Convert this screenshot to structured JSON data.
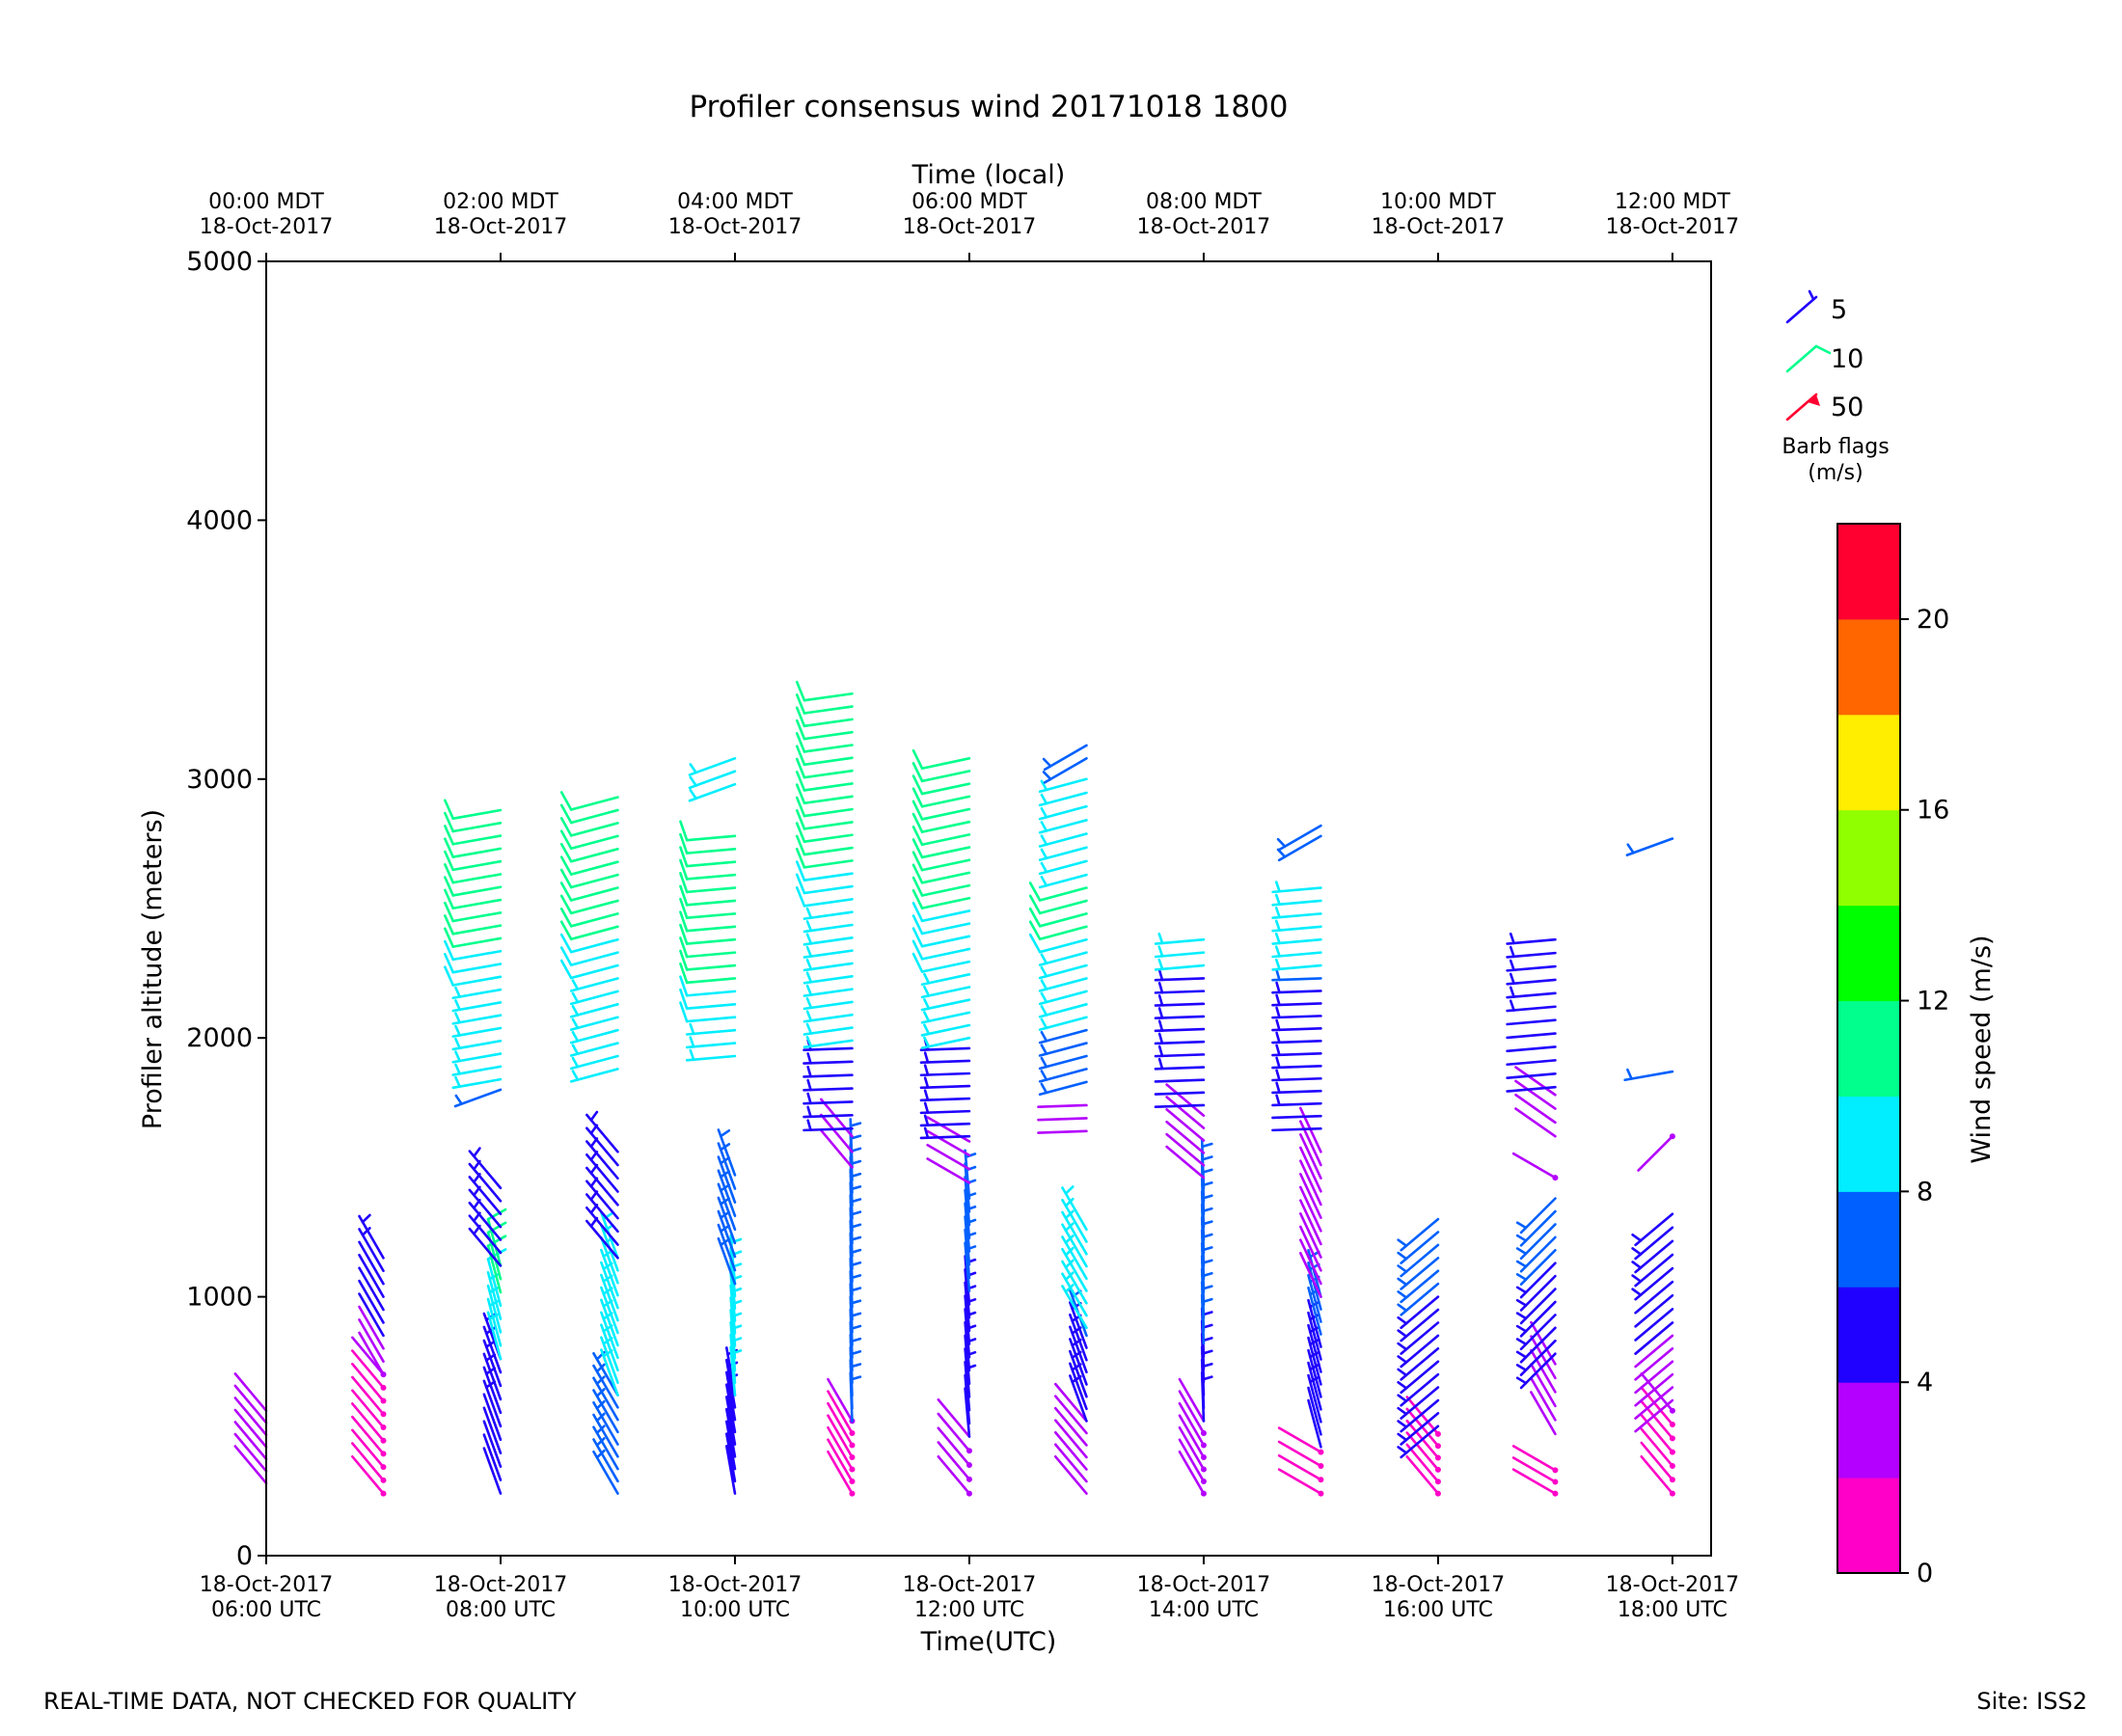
{
  "chart_data": {
    "type": "wind-barbs",
    "title": "Profiler consensus wind 20171018 1800",
    "xlabel": "Time(UTC)",
    "xlabel_top": "Time (local)",
    "ylabel": "Profiler altitude (meters)",
    "ylim": [
      0,
      5000
    ],
    "xlim_hours_utc": [
      6.0,
      18.33
    ],
    "yticks": [
      0,
      1000,
      2000,
      3000,
      4000,
      5000
    ],
    "xticks_bottom": [
      {
        "hour": 6,
        "line1": "18-Oct-2017",
        "line2": "06:00 UTC"
      },
      {
        "hour": 8,
        "line1": "18-Oct-2017",
        "line2": "08:00 UTC"
      },
      {
        "hour": 10,
        "line1": "18-Oct-2017",
        "line2": "10:00 UTC"
      },
      {
        "hour": 12,
        "line1": "18-Oct-2017",
        "line2": "12:00 UTC"
      },
      {
        "hour": 14,
        "line1": "18-Oct-2017",
        "line2": "14:00 UTC"
      },
      {
        "hour": 16,
        "line1": "18-Oct-2017",
        "line2": "16:00 UTC"
      },
      {
        "hour": 18,
        "line1": "18-Oct-2017",
        "line2": "18:00 UTC"
      }
    ],
    "xticks_top": [
      {
        "hour": 6,
        "line1": "00:00 MDT",
        "line2": "18-Oct-2017"
      },
      {
        "hour": 8,
        "line1": "02:00 MDT",
        "line2": "18-Oct-2017"
      },
      {
        "hour": 10,
        "line1": "04:00 MDT",
        "line2": "18-Oct-2017"
      },
      {
        "hour": 12,
        "line1": "06:00 MDT",
        "line2": "18-Oct-2017"
      },
      {
        "hour": 14,
        "line1": "08:00 MDT",
        "line2": "18-Oct-2017"
      },
      {
        "hour": 16,
        "line1": "10:00 MDT",
        "line2": "18-Oct-2017"
      },
      {
        "hour": 18,
        "line1": "12:00 MDT",
        "line2": "18-Oct-2017"
      }
    ],
    "colorbar": {
      "label": "Wind speed (m/s)",
      "min": 0,
      "max": 22,
      "step": 2,
      "ticks": [
        0,
        4,
        8,
        12,
        16,
        20
      ],
      "colors": [
        "#ff00c8",
        "#b400ff",
        "#2000ff",
        "#0060ff",
        "#00eeff",
        "#00ff8c",
        "#00ff00",
        "#90ff00",
        "#ffee00",
        "#ff6600",
        "#ff0030"
      ]
    },
    "barb_legend": {
      "title_line1": "Barb flags",
      "title_line2": "(m/s)",
      "items": [
        {
          "label": "5",
          "speed": 5,
          "color": "#2000ff"
        },
        {
          "label": "10",
          "speed": 10,
          "color": "#00ff8c"
        },
        {
          "label": "50",
          "speed": 50,
          "color": "#ff0030"
        }
      ]
    },
    "profiles": [
      {
        "time": 6.0,
        "segments": [
          {
            "h0": 280,
            "h1": 560,
            "dir": 320,
            "spd0": 2.5,
            "spd1": 3.0
          }
        ]
      },
      {
        "time": 7.0,
        "segments": [
          {
            "h0": 240,
            "h1": 700,
            "dir": 320,
            "spd0": 1.0,
            "spd1": 2.0
          },
          {
            "h0": 700,
            "h1": 1150,
            "dir": 330,
            "spd0": 3.5,
            "spd1": 5.0
          }
        ]
      },
      {
        "time": 8.0,
        "segments": [
          {
            "h0": 240,
            "h1": 760,
            "dir": 340,
            "spd0": 4.5,
            "spd1": 5.0
          },
          {
            "h0": 760,
            "h1": 1120,
            "dir": 345,
            "spd0": 9.0,
            "spd1": 10.5
          },
          {
            "h0": 1120,
            "h1": 1420,
            "dir": 320,
            "spd0": 5.0,
            "spd1": 5.0
          },
          {
            "h0": 1800,
            "h1": 1800,
            "dir": 250,
            "spd0": 6.0,
            "spd1": 6.0
          },
          {
            "h0": 1840,
            "h1": 2880,
            "dir": 260,
            "spd0": 9.0,
            "spd1": 11.0
          }
        ]
      },
      {
        "time": 9.0,
        "segments": [
          {
            "h0": 240,
            "h1": 620,
            "dir": 330,
            "spd0": 6.0,
            "spd1": 7.0
          },
          {
            "h0": 620,
            "h1": 1150,
            "dir": 340,
            "spd0": 8.5,
            "spd1": 9.5
          },
          {
            "h0": 1150,
            "h1": 1560,
            "dir": 320,
            "spd0": 5.0,
            "spd1": 5.0
          },
          {
            "h0": 1880,
            "h1": 2930,
            "dir": 255,
            "spd0": 9.0,
            "spd1": 11.0
          }
        ]
      },
      {
        "time": 10.0,
        "segments": [
          {
            "h0": 240,
            "h1": 620,
            "dir": 350,
            "spd0": 4.0,
            "spd1": 5.0
          },
          {
            "h0": 620,
            "h1": 1050,
            "dir": 355,
            "spd0": 8.0,
            "spd1": 9.0
          },
          {
            "h0": 1050,
            "h1": 1470,
            "dir": 340,
            "spd0": 6.0,
            "spd1": 6.0
          },
          {
            "h0": 1930,
            "h1": 2780,
            "dir": 265,
            "spd0": 9.5,
            "spd1": 11.0
          },
          {
            "h0": 2980,
            "h1": 3080,
            "dir": 250,
            "spd0": 9.0,
            "spd1": 9.0
          }
        ]
      },
      {
        "time": 11.0,
        "segments": [
          {
            "h0": 240,
            "h1": 520,
            "dir": 330,
            "spd0": 1.5,
            "spd1": 2.0
          },
          {
            "h0": 520,
            "h1": 1500,
            "dir": 358,
            "spd0": 6.0,
            "spd1": 7.0
          },
          {
            "h0": 1500,
            "h1": 1620,
            "dir": 320,
            "spd0": 3.0,
            "spd1": 3.0
          },
          {
            "h0": 1650,
            "h1": 1960,
            "dir": 268,
            "spd0": 5.0,
            "spd1": 5.5
          },
          {
            "h0": 1990,
            "h1": 3330,
            "dir": 262,
            "spd0": 9.0,
            "spd1": 11.0
          }
        ]
      },
      {
        "time": 12.0,
        "segments": [
          {
            "h0": 240,
            "h1": 460,
            "dir": 320,
            "spd0": 2.0,
            "spd1": 2.5
          },
          {
            "h0": 460,
            "h1": 1380,
            "dir": 355,
            "spd0": 4.5,
            "spd1": 7.0
          },
          {
            "h0": 1440,
            "h1": 1600,
            "dir": 300,
            "spd0": 3.5,
            "spd1": 3.5
          },
          {
            "h0": 1620,
            "h1": 1960,
            "dir": 268,
            "spd0": 5.0,
            "spd1": 5.5
          },
          {
            "h0": 2000,
            "h1": 3080,
            "dir": 258,
            "spd0": 9.5,
            "spd1": 10.5
          }
        ]
      },
      {
        "time": 13.0,
        "segments": [
          {
            "h0": 240,
            "h1": 520,
            "dir": 320,
            "spd0": 3.0,
            "spd1": 3.0
          },
          {
            "h0": 520,
            "h1": 850,
            "dir": 340,
            "spd0": 5.0,
            "spd1": 6.0
          },
          {
            "h0": 880,
            "h1": 1260,
            "dir": 330,
            "spd0": 8.0,
            "spd1": 9.0
          },
          {
            "h0": 1640,
            "h1": 1740,
            "dir": 268,
            "spd0": 3.0,
            "spd1": 3.0
          },
          {
            "h0": 1830,
            "h1": 2580,
            "dir": 255,
            "spd0": 6.5,
            "spd1": 11.0
          },
          {
            "h0": 2630,
            "h1": 3000,
            "dir": 255,
            "spd0": 9.0,
            "spd1": 9.0
          },
          {
            "h0": 3080,
            "h1": 3130,
            "dir": 240,
            "spd0": 6.0,
            "spd1": 6.0
          }
        ]
      },
      {
        "time": 14.0,
        "segments": [
          {
            "h0": 240,
            "h1": 520,
            "dir": 330,
            "spd0": 2.0,
            "spd1": 2.5
          },
          {
            "h0": 520,
            "h1": 1420,
            "dir": 358,
            "spd0": 5.5,
            "spd1": 7.0
          },
          {
            "h0": 1460,
            "h1": 1700,
            "dir": 310,
            "spd0": 3.0,
            "spd1": 3.0
          },
          {
            "h0": 1740,
            "h1": 2230,
            "dir": 268,
            "spd0": 4.5,
            "spd1": 5.5
          },
          {
            "h0": 2280,
            "h1": 2380,
            "dir": 265,
            "spd0": 8.5,
            "spd1": 8.5
          }
        ]
      },
      {
        "time": 15.0,
        "segments": [
          {
            "h0": 240,
            "h1": 400,
            "dir": 300,
            "spd0": 1.0,
            "spd1": 1.5
          },
          {
            "h0": 420,
            "h1": 1000,
            "dir": 345,
            "spd0": 4.5,
            "spd1": 6.5
          },
          {
            "h0": 1000,
            "h1": 1560,
            "dir": 335,
            "spd0": 2.5,
            "spd1": 3.0
          },
          {
            "h0": 1650,
            "h1": 2230,
            "dir": 268,
            "spd0": 4.5,
            "spd1": 6.0
          },
          {
            "h0": 2280,
            "h1": 2580,
            "dir": 265,
            "spd0": 8.5,
            "spd1": 8.5
          },
          {
            "h0": 2780,
            "h1": 2820,
            "dir": 240,
            "spd0": 6.0,
            "spd1": 6.0
          }
        ]
      },
      {
        "time": 16.0,
        "segments": [
          {
            "h0": 240,
            "h1": 470,
            "dir": 320,
            "spd0": 1.0,
            "spd1": 1.5
          },
          {
            "h0": 500,
            "h1": 1300,
            "dir": 230,
            "spd0": 5.0,
            "spd1": 6.5
          }
        ]
      },
      {
        "time": 17.0,
        "segments": [
          {
            "h0": 240,
            "h1": 330,
            "dir": 300,
            "spd0": 1.5,
            "spd1": 1.5
          },
          {
            "h0": 470,
            "h1": 740,
            "dir": 330,
            "spd0": 2.5,
            "spd1": 3.0
          },
          {
            "h0": 780,
            "h1": 1380,
            "dir": 225,
            "spd0": 5.0,
            "spd1": 6.5
          },
          {
            "h0": 1460,
            "h1": 1460,
            "dir": 300,
            "spd0": 2.0,
            "spd1": 2.0
          },
          {
            "h0": 1620,
            "h1": 1780,
            "dir": 305,
            "spd0": 3.0,
            "spd1": 3.0
          },
          {
            "h0": 1810,
            "h1": 2380,
            "dir": 265,
            "spd0": 4.5,
            "spd1": 5.0
          }
        ]
      },
      {
        "time": 18.0,
        "segments": [
          {
            "h0": 240,
            "h1": 560,
            "dir": 320,
            "spd0": 1.0,
            "spd1": 2.0
          },
          {
            "h0": 600,
            "h1": 900,
            "dir": 230,
            "spd0": 3.0,
            "spd1": 3.5
          },
          {
            "h0": 900,
            "h1": 1320,
            "dir": 230,
            "spd0": 4.5,
            "spd1": 5.0
          },
          {
            "h0": 1620,
            "h1": 1620,
            "dir": 225,
            "spd0": 2.0,
            "spd1": 2.0
          },
          {
            "h0": 1870,
            "h1": 1870,
            "dir": 260,
            "spd0": 6.0,
            "spd1": 6.0
          },
          {
            "h0": 2770,
            "h1": 2770,
            "dir": 250,
            "spd0": 6.0,
            "spd1": 6.0
          }
        ]
      }
    ]
  },
  "footer": {
    "disclaimer": "REAL-TIME DATA, NOT CHECKED FOR QUALITY",
    "site": "Site: ISS2"
  }
}
